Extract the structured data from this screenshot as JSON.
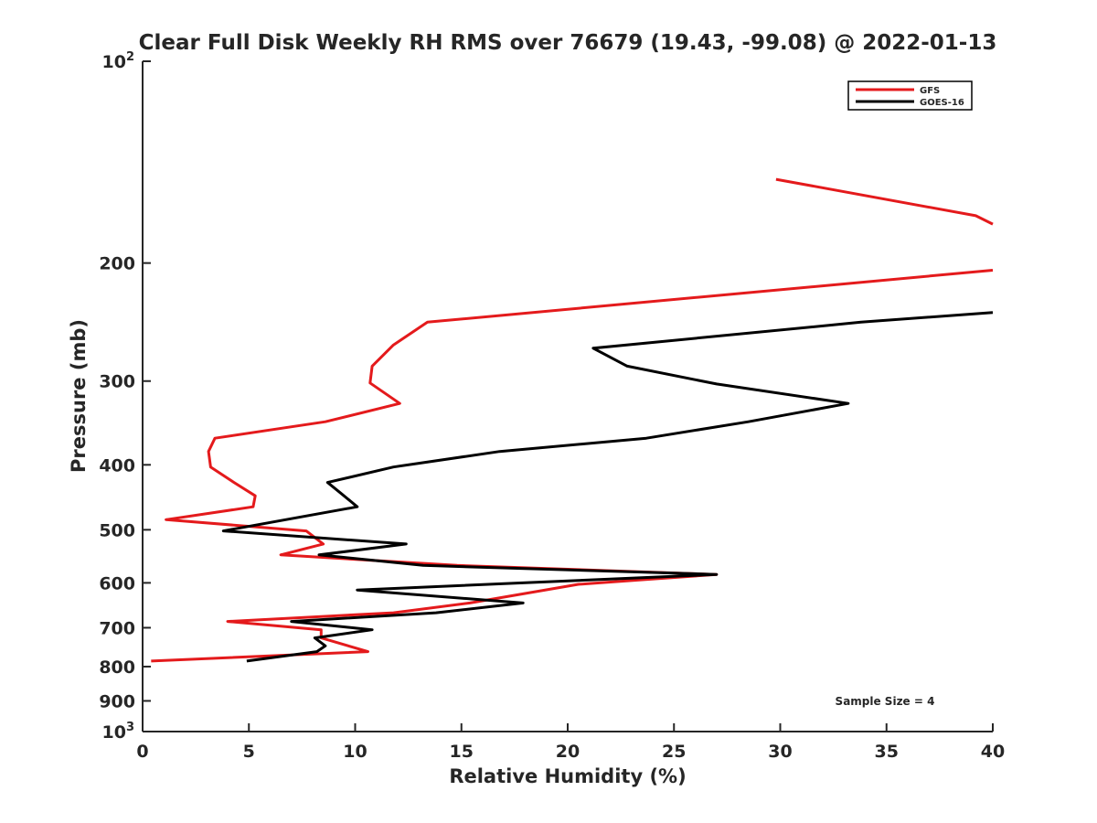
{
  "chart_data": {
    "type": "line",
    "title": "Clear Full Disk Weekly RH RMS over 76679 (19.43, -99.08) @ 2022-01-13",
    "xlabel": "Relative Humidity (%)",
    "ylabel": "Pressure (mb)",
    "xlim": [
      0,
      40
    ],
    "ylim": [
      100,
      1000
    ],
    "y_scale": "log",
    "y_reversed": true,
    "grid": false,
    "legend_position": "top-right",
    "x_ticks": [
      0,
      5,
      10,
      15,
      20,
      25,
      30,
      35,
      40
    ],
    "y_tick_labels": [
      {
        "value": 100,
        "label": "10",
        "exponent": "2"
      },
      {
        "value": 200,
        "label": "200"
      },
      {
        "value": 300,
        "label": "300"
      },
      {
        "value": 400,
        "label": "400"
      },
      {
        "value": 500,
        "label": "500"
      },
      {
        "value": 600,
        "label": "600"
      },
      {
        "value": 700,
        "label": "700"
      },
      {
        "value": 800,
        "label": "800"
      },
      {
        "value": 900,
        "label": "900"
      },
      {
        "value": 1000,
        "label": "10",
        "exponent": "3"
      }
    ],
    "annotation": "Sample Size = 4",
    "series": [
      {
        "name": "GFS",
        "color": "#e41a1c",
        "segments": [
          [
            {
              "x": 29.8,
              "y": 150
            },
            {
              "x": 39.2,
              "y": 170
            },
            {
              "x": 40.0,
              "y": 175
            }
          ],
          [
            {
              "x": 40.0,
              "y": 205
            },
            {
              "x": 13.4,
              "y": 245
            },
            {
              "x": 11.8,
              "y": 265
            },
            {
              "x": 10.8,
              "y": 285
            },
            {
              "x": 10.7,
              "y": 302
            },
            {
              "x": 12.1,
              "y": 324
            },
            {
              "x": 8.6,
              "y": 345
            },
            {
              "x": 3.4,
              "y": 365
            },
            {
              "x": 3.1,
              "y": 382
            },
            {
              "x": 3.2,
              "y": 403
            },
            {
              "x": 4.3,
              "y": 425
            },
            {
              "x": 5.3,
              "y": 445
            },
            {
              "x": 5.2,
              "y": 462
            },
            {
              "x": 1.1,
              "y": 483
            },
            {
              "x": 7.7,
              "y": 502
            },
            {
              "x": 8.5,
              "y": 525
            },
            {
              "x": 6.5,
              "y": 545
            },
            {
              "x": 14.8,
              "y": 565
            },
            {
              "x": 27.0,
              "y": 583
            },
            {
              "x": 20.5,
              "y": 603
            },
            {
              "x": 15.4,
              "y": 643
            },
            {
              "x": 11.8,
              "y": 665
            },
            {
              "x": 4.0,
              "y": 685
            },
            {
              "x": 8.4,
              "y": 705
            },
            {
              "x": 8.4,
              "y": 725
            },
            {
              "x": 10.6,
              "y": 760
            },
            {
              "x": 0.4,
              "y": 785
            }
          ]
        ]
      },
      {
        "name": "GOES-16",
        "color": "#000000",
        "segments": [
          [
            {
              "x": 40.0,
              "y": 237
            },
            {
              "x": 33.8,
              "y": 245
            },
            {
              "x": 21.2,
              "y": 268
            },
            {
              "x": 22.8,
              "y": 285
            },
            {
              "x": 27.0,
              "y": 303
            },
            {
              "x": 33.2,
              "y": 324
            },
            {
              "x": 28.5,
              "y": 345
            },
            {
              "x": 23.7,
              "y": 365
            },
            {
              "x": 16.8,
              "y": 382
            },
            {
              "x": 11.8,
              "y": 403
            },
            {
              "x": 8.7,
              "y": 425
            },
            {
              "x": 9.4,
              "y": 443
            },
            {
              "x": 10.1,
              "y": 462
            },
            {
              "x": 3.8,
              "y": 502
            },
            {
              "x": 12.4,
              "y": 525
            },
            {
              "x": 8.3,
              "y": 545
            },
            {
              "x": 13.2,
              "y": 565
            },
            {
              "x": 27.0,
              "y": 583
            },
            {
              "x": 10.1,
              "y": 615
            },
            {
              "x": 17.9,
              "y": 643
            },
            {
              "x": 13.8,
              "y": 665
            },
            {
              "x": 7.0,
              "y": 685
            },
            {
              "x": 10.8,
              "y": 705
            },
            {
              "x": 8.1,
              "y": 725
            },
            {
              "x": 8.6,
              "y": 745
            },
            {
              "x": 8.2,
              "y": 760
            },
            {
              "x": 4.9,
              "y": 785
            }
          ]
        ]
      }
    ]
  }
}
